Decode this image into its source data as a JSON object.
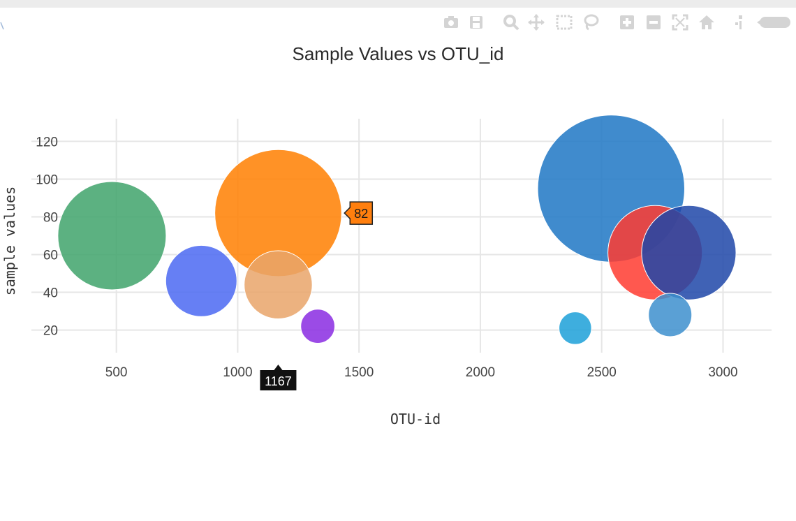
{
  "modebar": {
    "icons": [
      "camera-icon",
      "save-icon",
      "zoom-icon",
      "pan-icon",
      "box-select-icon",
      "lasso-select-icon",
      "zoom-in-icon",
      "zoom-out-icon",
      "autoscale-icon",
      "reset-axes-icon",
      "spike-lines-icon",
      "hover-compare-icon"
    ]
  },
  "colors": {
    "grid": "#e6e6e6",
    "tick_text": "#444444",
    "hover_y_bg": "#ff7f0e",
    "hover_x_bg": "#111111",
    "modebar_icon": "#d4d4d4"
  },
  "chart_data": {
    "type": "scatter",
    "title": "Sample Values vs OTU_id",
    "xlabel": "OTU-id",
    "ylabel": "sample values",
    "xlim": [
      150,
      3200
    ],
    "ylim": [
      8,
      132
    ],
    "grid": true,
    "xticks": [
      500,
      1000,
      1500,
      2000,
      2500,
      3000
    ],
    "yticks": [
      20,
      40,
      60,
      80,
      100,
      120
    ],
    "xtick_labels": [
      "500",
      "1000",
      "1500",
      "2000",
      "2500",
      "3000"
    ],
    "ytick_labels": [
      "20",
      "40",
      "60",
      "80",
      "100",
      "120"
    ],
    "bubbles": [
      {
        "x": 482,
        "y": 70,
        "size": 70,
        "color": "#3fa36b"
      },
      {
        "x": 1167,
        "y": 82,
        "size": 82,
        "color": "#ff7f00"
      },
      {
        "x": 1167,
        "y": 44,
        "size": 44,
        "color": "#e9a46a"
      },
      {
        "x": 850,
        "y": 46,
        "size": 46,
        "color": "#4b69f2"
      },
      {
        "x": 1330,
        "y": 22,
        "size": 22,
        "color": "#8a2be2"
      },
      {
        "x": 2539,
        "y": 95,
        "size": 95,
        "color": "#1f77c4"
      },
      {
        "x": 2720,
        "y": 61,
        "size": 61,
        "color": "#ff3b30"
      },
      {
        "x": 2859,
        "y": 61,
        "size": 61,
        "color": "#1f47a8"
      },
      {
        "x": 2782,
        "y": 28,
        "size": 28,
        "color": "#3d8fce"
      },
      {
        "x": 2391,
        "y": 21,
        "size": 21,
        "color": "#1ca0d8"
      }
    ],
    "hover": {
      "y_label": "82",
      "x_label": "1167"
    }
  }
}
